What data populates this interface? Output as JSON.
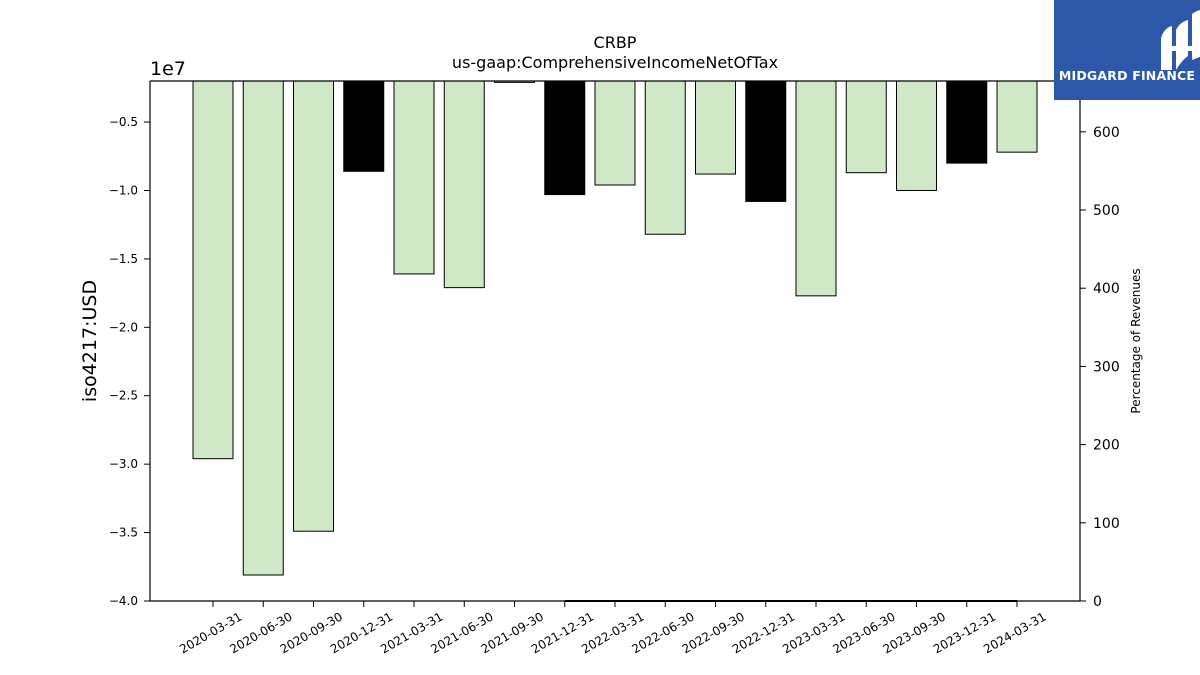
{
  "chart_data": {
    "type": "bar",
    "title": "CRBP",
    "subtitle": "us-gaap:ComprehensiveIncomeNetOfTax",
    "ylabel": "iso4217:USD",
    "y2label": "Percentage of Revenues",
    "offset_label": "1e7",
    "ylim": [
      -4.0,
      -0.2
    ],
    "yticks": [
      "−0.5",
      "−1.0",
      "−1.5",
      "−2.0",
      "−2.5",
      "−3.0",
      "−3.5",
      "−4.0"
    ],
    "ytick_values": [
      -0.5,
      -1.0,
      -1.5,
      -2.0,
      -2.5,
      -3.0,
      -3.5,
      -4.0
    ],
    "y2lim": [
      0,
      665
    ],
    "y2ticks": [
      "0",
      "100",
      "200",
      "300",
      "400",
      "500",
      "600"
    ],
    "y2tick_values": [
      0,
      100,
      200,
      300,
      400,
      500,
      600
    ],
    "categories": [
      "2020-03-31",
      "2020-06-30",
      "2020-09-30",
      "2020-12-31",
      "2021-03-31",
      "2021-06-30",
      "2021-09-30",
      "2021-12-31",
      "2022-03-31",
      "2022-06-30",
      "2022-09-30",
      "2022-12-31",
      "2023-03-31",
      "2023-06-30",
      "2023-09-30",
      "2023-12-31",
      "2024-03-31"
    ],
    "values": [
      -2.96,
      -3.81,
      -3.49,
      -0.86,
      -1.61,
      -1.71,
      -0.21,
      -1.03,
      -0.96,
      -1.32,
      -0.88,
      -1.08,
      -1.77,
      -0.87,
      -1.0,
      -0.8,
      -0.72
    ],
    "highlight": [
      false,
      false,
      false,
      true,
      false,
      false,
      false,
      true,
      false,
      false,
      false,
      true,
      false,
      false,
      false,
      true,
      false
    ],
    "colors": {
      "bar": "#cfe9c7",
      "highlight": "#000000",
      "edge": "#000000"
    },
    "y2_series": {
      "name": "",
      "x_start_index": 7,
      "x_end_index": 16,
      "values": [
        0,
        0,
        0,
        0,
        0,
        0,
        0,
        0,
        0,
        0
      ]
    },
    "grid": false
  },
  "logo": {
    "text": "MIDGARD FINANCE",
    "background": "#2d57a8"
  }
}
